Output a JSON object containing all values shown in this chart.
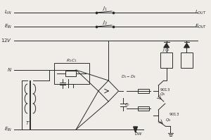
{
  "bg_color": "#f0ede8",
  "line_color": "#2a2a2a",
  "title": "",
  "fig_width": 3.0,
  "fig_height": 2.0,
  "dpi": 100
}
